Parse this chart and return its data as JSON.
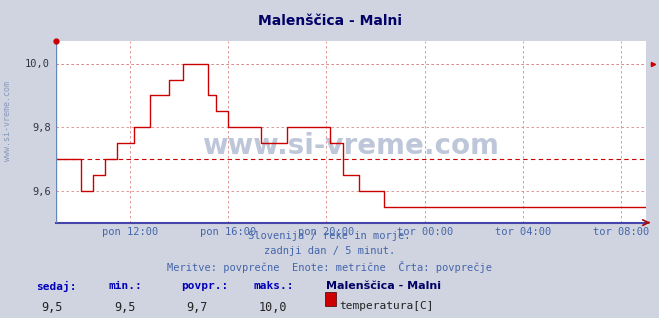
{
  "title": "Malenščica - Malni",
  "bg_color": "#d0d4e0",
  "plot_bg_color": "#ffffff",
  "grid_color": "#dd8888",
  "line_color": "#cc0000",
  "avg_line_color": "#cc0000",
  "avg_value": 9.7,
  "ylim": [
    9.5,
    10.07
  ],
  "yticks": [
    9.6,
    9.8,
    10.0
  ],
  "ytick_labels": [
    "9,6",
    "9,8",
    "10,0"
  ],
  "xlabel_color": "#4466aa",
  "title_color": "#000066",
  "subtitle_lines": [
    "Slovenija / reke in morje.",
    "zadnji dan / 5 minut.",
    "Meritve: povprečne  Enote: metrične  Črta: povprečje"
  ],
  "footer_labels": [
    "sedaj:",
    "min.:",
    "povpr.:",
    "maks.:"
  ],
  "footer_values": [
    "9,5",
    "9,5",
    "9,7",
    "10,0"
  ],
  "footer_series": "Malenščica - Malni",
  "footer_unit": "temperatura[C]",
  "x_tick_labels": [
    "pon 12:00",
    "pon 16:00",
    "pon 20:00",
    "tor 00:00",
    "tor 04:00",
    "tor 08:00"
  ],
  "watermark": "www.si-vreme.com",
  "left_label": "www.si-vreme.com",
  "spine_bottom_color": "#4444aa",
  "n_points": 288,
  "data_x": [
    0,
    12,
    12,
    18,
    18,
    24,
    24,
    30,
    30,
    38,
    38,
    46,
    46,
    55,
    55,
    62,
    62,
    74,
    74,
    78,
    78,
    84,
    84,
    100,
    100,
    113,
    113,
    120,
    120,
    134,
    134,
    140,
    140,
    148,
    148,
    160,
    160,
    288
  ],
  "data_y": [
    9.7,
    9.7,
    9.6,
    9.6,
    9.65,
    9.65,
    9.7,
    9.7,
    9.75,
    9.75,
    9.8,
    9.8,
    9.9,
    9.9,
    9.95,
    9.95,
    10.0,
    10.0,
    9.9,
    9.9,
    9.85,
    9.85,
    9.8,
    9.8,
    9.75,
    9.75,
    9.8,
    9.8,
    9.8,
    9.8,
    9.75,
    9.75,
    9.65,
    9.65,
    9.6,
    9.6,
    9.55,
    9.55
  ]
}
